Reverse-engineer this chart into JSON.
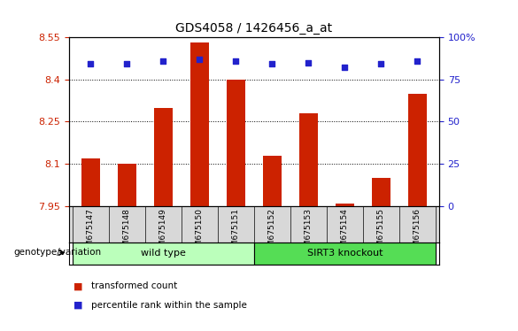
{
  "title": "GDS4058 / 1426456_a_at",
  "samples": [
    "GSM675147",
    "GSM675148",
    "GSM675149",
    "GSM675150",
    "GSM675151",
    "GSM675152",
    "GSM675153",
    "GSM675154",
    "GSM675155",
    "GSM675156"
  ],
  "transformed_count": [
    8.12,
    8.1,
    8.3,
    8.53,
    8.4,
    8.13,
    8.28,
    7.96,
    8.05,
    8.35
  ],
  "percentile_rank": [
    84,
    84,
    86,
    87,
    86,
    84,
    85,
    82,
    84,
    86
  ],
  "ylim_left": [
    7.95,
    8.55
  ],
  "ylim_right": [
    0,
    100
  ],
  "yticks_left": [
    7.95,
    8.1,
    8.25,
    8.4,
    8.55
  ],
  "yticks_right": [
    0,
    25,
    50,
    75,
    100
  ],
  "bar_color": "#cc2200",
  "dot_color": "#2222cc",
  "wild_type_samples": 5,
  "wild_type_label": "wild type",
  "knockout_label": "SIRT3 knockout",
  "wild_type_color": "#bbffbb",
  "knockout_color": "#55dd55",
  "genotype_label": "genotype/variation",
  "legend_bar_label": "transformed count",
  "legend_dot_label": "percentile rank within the sample",
  "grid_color": "black",
  "tick_label_color_left": "#cc2200",
  "tick_label_color_right": "#2222cc",
  "bar_bottom": 7.95
}
